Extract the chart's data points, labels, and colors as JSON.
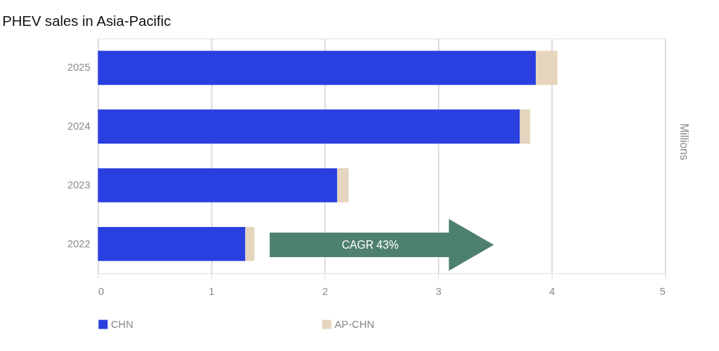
{
  "chart_data": {
    "type": "bar",
    "orientation": "horizontal",
    "stacked": true,
    "title": "PHEV sales in Asia-Pacific",
    "y2label": "Millions",
    "categories": [
      "2025",
      "2024",
      "2023",
      "2022"
    ],
    "series": [
      {
        "name": "CHN",
        "color": "#2a3fe0",
        "values": [
          3.86,
          3.72,
          2.11,
          1.3
        ]
      },
      {
        "name": "AP-CHN",
        "color": "#e6d5bd",
        "values": [
          0.19,
          0.09,
          0.1,
          0.08
        ]
      }
    ],
    "xlim": [
      0,
      5
    ],
    "xticks": [
      0,
      1,
      2,
      3,
      4,
      5
    ],
    "grid": "x",
    "legend": "bottom",
    "annotations": [
      "CAGR 43%"
    ]
  }
}
